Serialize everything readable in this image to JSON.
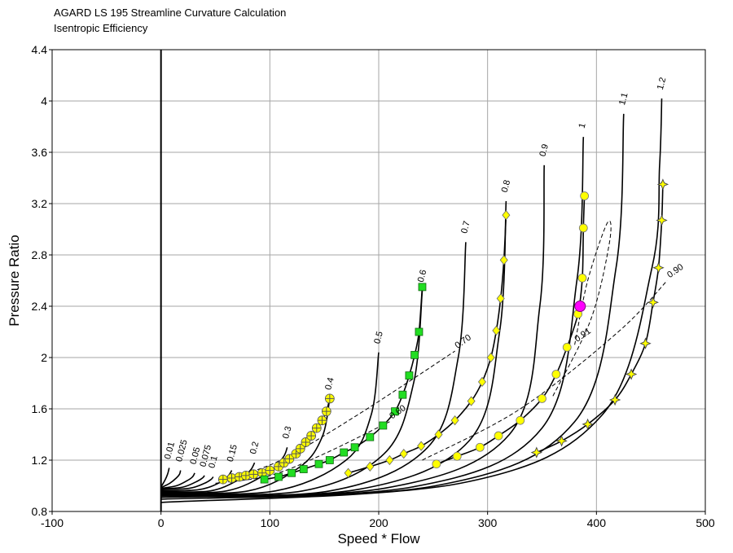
{
  "header": {
    "title": "AGARD LS 195 Streamline Curvature Calculation",
    "subtitle": "Isentropic Efficiency"
  },
  "chart_data": {
    "type": "line",
    "title": "AGARD LS 195 Streamline Curvature Calculation",
    "subtitle": "Isentropic Efficiency",
    "xlabel": "Speed * Flow",
    "ylabel": "Pressure Ratio",
    "xlim": [
      -100,
      500
    ],
    "ylim": [
      0.8,
      4.4
    ],
    "x_ticks": [
      "-100",
      "0",
      "100",
      "200",
      "300",
      "400",
      "500"
    ],
    "y_ticks": [
      "0.8",
      "1.2",
      "1.6",
      "2",
      "2.4",
      "2.8",
      "3.2",
      "3.6",
      "4",
      "4.4"
    ],
    "grid": true,
    "speed_lines": [
      {
        "label": "0.01",
        "x": [
          0,
          4,
          6,
          7,
          7.5
        ],
        "y": [
          0.99,
          1.05,
          1.09,
          1.12,
          1.14
        ]
      },
      {
        "label": "0.025",
        "x": [
          0,
          8,
          14,
          17,
          18
        ],
        "y": [
          0.985,
          1.02,
          1.06,
          1.09,
          1.12
        ]
      },
      {
        "label": "0.05",
        "x": [
          0,
          14,
          24,
          29,
          31
        ],
        "y": [
          0.98,
          1.0,
          1.04,
          1.07,
          1.1
        ]
      },
      {
        "label": "0.075",
        "x": [
          0,
          20,
          32,
          38,
          40
        ],
        "y": [
          0.975,
          0.99,
          1.03,
          1.06,
          1.08
        ]
      },
      {
        "label": "0.1",
        "x": [
          0,
          26,
          40,
          46,
          48
        ],
        "y": [
          0.97,
          0.98,
          1.02,
          1.05,
          1.07
        ]
      },
      {
        "label": "0.15",
        "x": [
          0,
          35,
          55,
          62,
          65
        ],
        "y": [
          0.96,
          0.97,
          1.03,
          1.08,
          1.12
        ]
      },
      {
        "label": "0.2",
        "x": [
          0,
          45,
          72,
          82,
          86
        ],
        "y": [
          0.955,
          0.96,
          1.05,
          1.12,
          1.18
        ]
      },
      {
        "label": "0.3",
        "x": [
          0,
          60,
          98,
          112,
          116
        ],
        "y": [
          0.95,
          0.96,
          1.1,
          1.22,
          1.3
        ]
      },
      {
        "label": "0.4",
        "x": [
          0,
          80,
          128,
          148,
          155
        ],
        "y": [
          0.945,
          0.96,
          1.15,
          1.38,
          1.68
        ]
      },
      {
        "label": "0.5",
        "x": [
          0,
          105,
          170,
          193,
          200
        ],
        "y": [
          0.94,
          0.96,
          1.2,
          1.55,
          2.04
        ]
      },
      {
        "label": "0.6",
        "x": [
          0,
          130,
          205,
          232,
          240
        ],
        "y": [
          0.935,
          0.96,
          1.25,
          1.8,
          2.52
        ]
      },
      {
        "label": "0.7",
        "x": [
          0,
          155,
          245,
          273,
          280
        ],
        "y": [
          0.93,
          0.96,
          1.3,
          2.0,
          2.9
        ]
      },
      {
        "label": "0.8",
        "x": [
          0,
          180,
          283,
          311,
          317
        ],
        "y": [
          0.925,
          0.97,
          1.35,
          2.2,
          3.22
        ]
      },
      {
        "label": "0.9",
        "x": [
          0,
          205,
          320,
          348,
          352
        ],
        "y": [
          0.92,
          0.98,
          1.4,
          2.4,
          3.5
        ]
      },
      {
        "label": "1",
        "x": [
          0,
          230,
          350,
          382,
          388
        ],
        "y": [
          0.91,
          0.99,
          1.45,
          2.6,
          3.72
        ]
      },
      {
        "label": "1.1",
        "x": [
          0,
          252,
          380,
          418,
          425
        ],
        "y": [
          0.895,
          1.0,
          1.5,
          2.7,
          3.9
        ]
      },
      {
        "label": "1.2",
        "x": [
          0,
          275,
          405,
          451,
          458,
          460
        ],
        "y": [
          0.87,
          1.02,
          1.55,
          2.7,
          3.5,
          4.02
        ]
      }
    ],
    "efficiency_contours": [
      {
        "label": "0.60",
        "x": [
          50,
          100,
          150,
          210
        ],
        "y": [
          1.02,
          1.08,
          1.25,
          1.5
        ]
      },
      {
        "label": "0.70",
        "x": [
          60,
          110,
          180,
          270
        ],
        "y": [
          1.05,
          1.2,
          1.55,
          2.05
        ]
      },
      {
        "label": "0.90",
        "x": [
          240,
          330,
          420,
          465
        ],
        "y": [
          1.2,
          1.6,
          2.2,
          2.6
        ]
      },
      {
        "label": "0.91",
        "x": [
          360,
          395,
          412,
          410,
          392,
          380
        ],
        "y": [
          1.7,
          2.3,
          2.9,
          3.05,
          2.6,
          2.1
        ]
      }
    ],
    "operating_points": [
      {
        "speed": "0.4",
        "marker": "cross",
        "x": [
          57,
          65,
          72,
          78,
          85,
          93,
          100,
          108,
          113,
          118,
          124,
          128,
          133,
          138,
          143,
          148,
          152,
          155
        ],
        "y": [
          1.05,
          1.06,
          1.07,
          1.08,
          1.09,
          1.1,
          1.12,
          1.15,
          1.18,
          1.21,
          1.25,
          1.29,
          1.34,
          1.39,
          1.45,
          1.51,
          1.58,
          1.68
        ]
      },
      {
        "speed": "0.6",
        "marker": "square",
        "x": [
          95,
          108,
          120,
          131,
          145,
          155,
          168,
          178,
          192,
          204,
          215,
          222,
          228,
          233,
          237,
          240
        ],
        "y": [
          1.05,
          1.07,
          1.1,
          1.13,
          1.17,
          1.2,
          1.26,
          1.3,
          1.38,
          1.47,
          1.58,
          1.71,
          1.86,
          2.02,
          2.2,
          2.55
        ]
      },
      {
        "speed": "0.8",
        "marker": "diamond",
        "x": [
          172,
          192,
          210,
          223,
          239,
          255,
          270,
          285,
          295,
          303,
          308,
          312,
          315,
          317
        ],
        "y": [
          1.1,
          1.15,
          1.2,
          1.25,
          1.31,
          1.4,
          1.51,
          1.66,
          1.81,
          2.0,
          2.21,
          2.46,
          2.76,
          3.11
        ]
      },
      {
        "speed": "1",
        "marker": "circle",
        "x": [
          253,
          272,
          293,
          310,
          330,
          350,
          363,
          373,
          383,
          387,
          388,
          389
        ],
        "y": [
          1.17,
          1.23,
          1.3,
          1.39,
          1.51,
          1.68,
          1.87,
          2.08,
          2.34,
          2.62,
          3.01,
          3.26
        ]
      },
      {
        "speed": "1.2",
        "marker": "star",
        "x": [
          345,
          368,
          392,
          417,
          432,
          445,
          452,
          457,
          460,
          461
        ],
        "y": [
          1.26,
          1.35,
          1.48,
          1.67,
          1.87,
          2.11,
          2.43,
          2.7,
          3.07,
          3.35
        ]
      }
    ],
    "design_point": {
      "x": 385,
      "y": 2.4
    }
  }
}
